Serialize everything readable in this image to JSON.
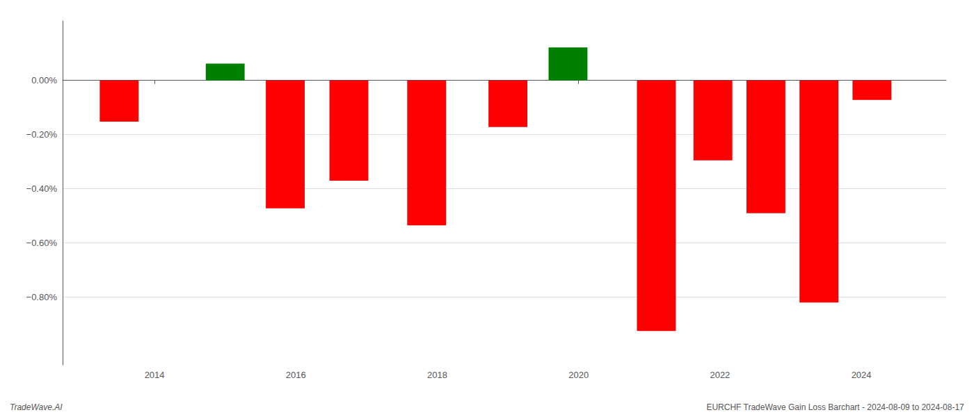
{
  "chart_data": {
    "type": "bar",
    "x": [
      2013.5,
      2015.0,
      2015.85,
      2016.75,
      2017.85,
      2019.0,
      2019.85,
      2021.1,
      2021.9,
      2022.65,
      2023.4,
      2024.15
    ],
    "values": [
      -0.00152,
      0.00062,
      -0.00472,
      -0.0037,
      -0.00535,
      -0.00172,
      0.00122,
      -0.00925,
      -0.00295,
      -0.0049,
      -0.0082,
      -0.00072
    ],
    "colors": [
      "#ff0000",
      "#008000",
      "#ff0000",
      "#ff0000",
      "#ff0000",
      "#ff0000",
      "#008000",
      "#ff0000",
      "#ff0000",
      "#ff0000",
      "#ff0000",
      "#ff0000"
    ],
    "xlim": [
      2012.7,
      2025.2
    ],
    "xticks": [
      2014,
      2016,
      2018,
      2020,
      2022,
      2024
    ],
    "ylim": [
      -0.0105,
      0.0022
    ],
    "yticks": [
      {
        "value": 0.0,
        "label": "0.00%"
      },
      {
        "value": -0.002,
        "label": "−0.20%"
      },
      {
        "value": -0.004,
        "label": "−0.40%"
      },
      {
        "value": -0.006,
        "label": "−0.60%"
      },
      {
        "value": -0.008,
        "label": "−0.80%"
      }
    ],
    "grid": true,
    "annotations": [
      "TradeWave.AI",
      "EURCHF TradeWave Gain Loss Barchart - 2024-08-09 to 2024-08-17"
    ]
  }
}
